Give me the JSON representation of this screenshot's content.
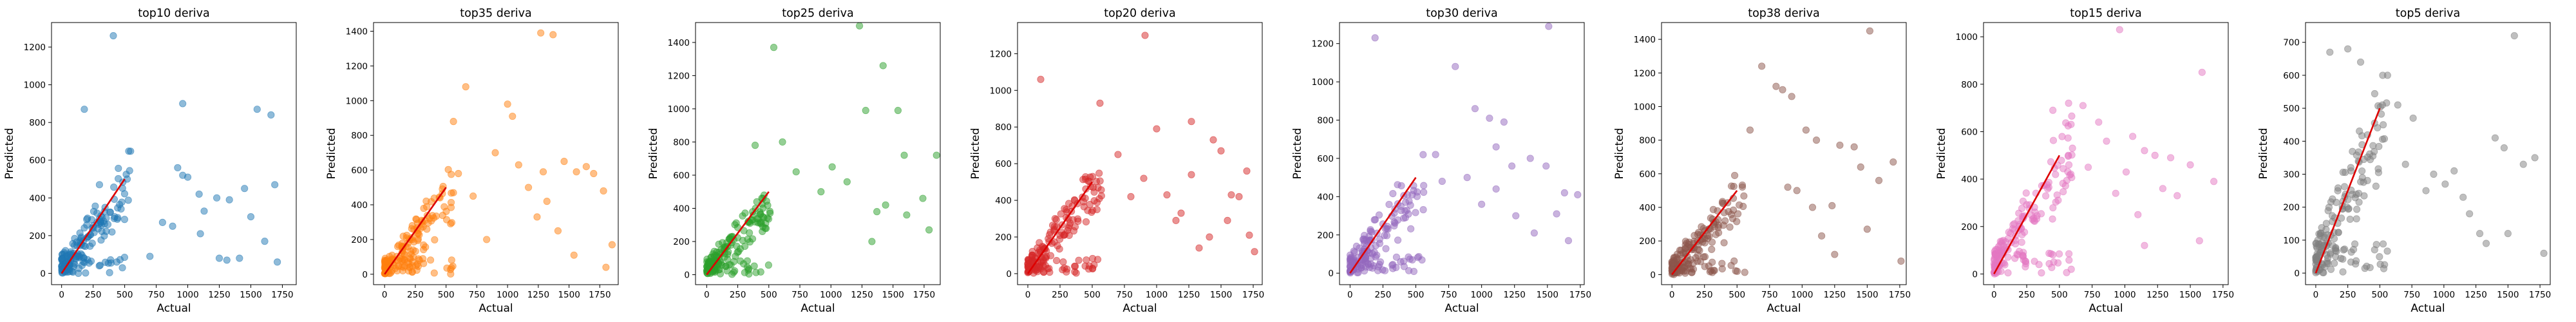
{
  "chart_data": [
    {
      "type": "scatter",
      "title": "top10 deriva",
      "xlabel": "Actual",
      "ylabel": "Predicted",
      "color": "#1f77b4",
      "xlim": [
        -80,
        1860
      ],
      "ylim": [
        -60,
        1330
      ],
      "xticks": [
        0,
        250,
        500,
        750,
        1000,
        1250,
        1500,
        1750
      ],
      "yticks": [
        0,
        200,
        400,
        600,
        800,
        1000,
        1200
      ],
      "x": [
        410,
        960,
        180,
        1550,
        1660,
        920,
        1690,
        1710,
        1450,
        300,
        520,
        960,
        1000,
        1090,
        1130,
        1330,
        1410,
        1500,
        1610,
        1250,
        800,
        880,
        1100,
        1310,
        700,
        1230
      ],
      "y": [
        1260,
        900,
        870,
        870,
        840,
        560,
        470,
        60,
        450,
        470,
        500,
        520,
        510,
        420,
        330,
        390,
        80,
        300,
        170,
        80,
        270,
        250,
        210,
        70,
        90,
        400
      ],
      "cluster": {
        "n": 170,
        "xmax": 550,
        "seed": 11
      }
    },
    {
      "type": "scatter",
      "title": "top35 deriva",
      "xlabel": "Actual",
      "ylabel": "Predicted",
      "color": "#ff7f0e",
      "xlim": [
        -90,
        1900
      ],
      "ylim": [
        -60,
        1450
      ],
      "xticks": [
        0,
        250,
        500,
        750,
        1000,
        1250,
        1500,
        1750
      ],
      "yticks": [
        0,
        200,
        400,
        600,
        800,
        1000,
        1200,
        1400
      ],
      "x": [
        1270,
        1370,
        660,
        1000,
        1040,
        1090,
        1290,
        1460,
        1560,
        560,
        900,
        1170,
        1320,
        1640,
        1700,
        1780,
        1850,
        600,
        720,
        1240,
        1410,
        1540,
        1800,
        830
      ],
      "y": [
        1390,
        1380,
        1080,
        980,
        910,
        630,
        590,
        650,
        590,
        880,
        700,
        500,
        420,
        620,
        580,
        480,
        170,
        580,
        450,
        330,
        250,
        110,
        40,
        200
      ],
      "cluster": {
        "n": 175,
        "xmax": 560,
        "seed": 22
      }
    },
    {
      "type": "scatter",
      "title": "top25 deriva",
      "xlabel": "Actual",
      "ylabel": "Predicted",
      "color": "#2ca02c",
      "xlim": [
        -90,
        1880
      ],
      "ylim": [
        -60,
        1520
      ],
      "xticks": [
        0,
        250,
        500,
        750,
        1000,
        1250,
        1500,
        1750
      ],
      "yticks": [
        0,
        200,
        400,
        600,
        800,
        1000,
        1200,
        1400
      ],
      "x": [
        1230,
        1420,
        540,
        1280,
        1540,
        1590,
        1850,
        1740,
        1010,
        1130,
        1440,
        1370,
        1610,
        1790,
        390,
        920,
        720,
        1330,
        610
      ],
      "y": [
        1500,
        1260,
        1370,
        990,
        990,
        720,
        720,
        460,
        650,
        560,
        420,
        380,
        360,
        270,
        780,
        500,
        620,
        200,
        800
      ],
      "cluster": {
        "n": 175,
        "xmax": 520,
        "seed": 33
      }
    },
    {
      "type": "scatter",
      "title": "top20 deriva",
      "xlabel": "Actual",
      "ylabel": "Predicted",
      "color": "#d62728",
      "xlim": [
        -80,
        1820
      ],
      "ylim": [
        -60,
        1370
      ],
      "xticks": [
        0,
        250,
        500,
        750,
        1000,
        1250,
        1500,
        1750
      ],
      "yticks": [
        0,
        200,
        400,
        600,
        800,
        1000,
        1200
      ],
      "x": [
        910,
        100,
        560,
        1000,
        1270,
        1440,
        1500,
        1580,
        1640,
        1700,
        900,
        1080,
        1150,
        1330,
        1410,
        1550,
        1720,
        1760,
        800,
        1190,
        700,
        1270
      ],
      "y": [
        1300,
        1060,
        930,
        790,
        830,
        730,
        670,
        430,
        420,
        560,
        520,
        430,
        290,
        140,
        200,
        290,
        210,
        120,
        420,
        330,
        650,
        540
      ],
      "cluster": {
        "n": 175,
        "xmax": 580,
        "seed": 44
      }
    },
    {
      "type": "scatter",
      "title": "top30 deriva",
      "xlabel": "Actual",
      "ylabel": "Predicted",
      "color": "#9467bd",
      "xlim": [
        -80,
        1780
      ],
      "ylim": [
        -60,
        1310
      ],
      "xticks": [
        0,
        250,
        500,
        750,
        1000,
        1250,
        1500,
        1750
      ],
      "yticks": [
        0,
        200,
        400,
        600,
        800,
        1000,
        1200
      ],
      "x": [
        190,
        1510,
        800,
        950,
        1060,
        1170,
        1230,
        1370,
        1490,
        1630,
        1730,
        650,
        890,
        1000,
        1110,
        1260,
        1400,
        1570,
        1660,
        1110,
        700
      ],
      "y": [
        1230,
        1290,
        1080,
        860,
        810,
        790,
        560,
        600,
        560,
        420,
        410,
        620,
        500,
        360,
        440,
        300,
        210,
        310,
        170,
        660,
        480
      ],
      "cluster": {
        "n": 175,
        "xmax": 560,
        "seed": 55
      }
    },
    {
      "type": "scatter",
      "title": "top38 deriva",
      "xlabel": "Actual",
      "ylabel": "Predicted",
      "color": "#8c564b",
      "xlim": [
        -80,
        1800
      ],
      "ylim": [
        -60,
        1500
      ],
      "xticks": [
        0,
        250,
        500,
        750,
        1000,
        1250,
        1500,
        1750
      ],
      "yticks": [
        0,
        200,
        400,
        600,
        800,
        1000,
        1200,
        1400
      ],
      "x": [
        1520,
        690,
        800,
        850,
        920,
        1030,
        1110,
        1290,
        1400,
        1450,
        1590,
        1700,
        890,
        960,
        1080,
        1230,
        1500,
        1760,
        1150,
        1250,
        600
      ],
      "y": [
        1450,
        1240,
        1120,
        1100,
        1060,
        860,
        800,
        770,
        760,
        640,
        560,
        670,
        520,
        500,
        400,
        410,
        270,
        80,
        230,
        120,
        860
      ],
      "cluster": {
        "n": 175,
        "xmax": 560,
        "seed": 66
      }
    },
    {
      "type": "scatter",
      "title": "top15 deriva",
      "xlabel": "Actual",
      "ylabel": "Predicted",
      "color": "#e377c2",
      "xlim": [
        -80,
        1790
      ],
      "ylim": [
        -45,
        1060
      ],
      "xticks": [
        0,
        250,
        500,
        750,
        1000,
        1250,
        1500,
        1750
      ],
      "yticks": [
        0,
        200,
        400,
        600,
        800,
        1000
      ],
      "x": [
        960,
        1590,
        570,
        450,
        680,
        800,
        860,
        1060,
        1150,
        1230,
        1350,
        1500,
        1680,
        1010,
        930,
        1290,
        1400,
        1570,
        1150,
        720,
        1100
      ],
      "y": [
        1030,
        850,
        720,
        690,
        710,
        640,
        560,
        580,
        520,
        500,
        490,
        460,
        390,
        430,
        340,
        360,
        330,
        140,
        120,
        450,
        250
      ],
      "cluster": {
        "n": 175,
        "xmax": 600,
        "seed": 77
      }
    },
    {
      "type": "scatter",
      "title": "top5 deriva",
      "xlabel": "Actual",
      "ylabel": "Predicted",
      "color": "#7f7f7f",
      "xlim": [
        -80,
        1830
      ],
      "ylim": [
        -35,
        760
      ],
      "xticks": [
        0,
        250,
        500,
        750,
        1000,
        1250,
        1500,
        1750
      ],
      "yticks": [
        0,
        100,
        200,
        300,
        400,
        500,
        600,
        700
      ],
      "x": [
        1550,
        110,
        250,
        350,
        560,
        640,
        760,
        1400,
        1470,
        1620,
        1710,
        920,
        1010,
        1080,
        1150,
        1280,
        1330,
        1500,
        1780,
        860,
        700,
        1200
      ],
      "y": [
        720,
        670,
        680,
        640,
        600,
        510,
        470,
        410,
        380,
        330,
        350,
        300,
        270,
        310,
        230,
        120,
        90,
        120,
        60,
        250,
        330,
        180
      ],
      "cluster": {
        "n": 175,
        "xmax": 560,
        "seed": 88
      }
    }
  ]
}
